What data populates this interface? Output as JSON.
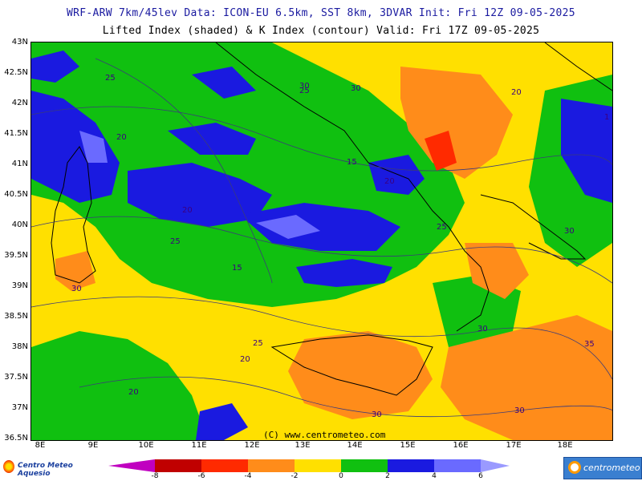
{
  "header": {
    "line1": "WRF-ARW 7km/45lev   Data: ICON-EU 6.5km, SST 8km, 3DVAR   Init: Fri 12Z 09-05-2025",
    "line2": "Lifted Index (shaded) & K Index (contour)  Valid: Fri 17Z 09-05-2025"
  },
  "axes": {
    "lat_labels": [
      "43N",
      "42.5N",
      "42N",
      "41.5N",
      "41N",
      "40.5N",
      "40N",
      "39.5N",
      "39N",
      "38.5N",
      "38N",
      "37.5N",
      "37N",
      "36.5N"
    ],
    "lon_labels": [
      "8E",
      "9E",
      "10E",
      "11E",
      "12E",
      "13E",
      "14E",
      "15E",
      "16E",
      "17E",
      "18E"
    ]
  },
  "contour_labels": [
    "25",
    "20",
    "30",
    "30",
    "25",
    "20",
    "15",
    "20",
    "20",
    "25",
    "25",
    "30",
    "15",
    "30",
    "25",
    "20",
    "20",
    "30",
    "30",
    "30",
    "35",
    "1"
  ],
  "watermark": "(C) www.centrometeo.com",
  "logos": {
    "left": "Centro Meteo Aquesio",
    "right": "centrometeo"
  },
  "colorbar": {
    "labels": [
      "-8",
      "-6",
      "-4",
      "-2",
      "0",
      "2",
      "4",
      "6"
    ],
    "colors": [
      "#c000c0",
      "#c00000",
      "#ff2a00",
      "#ff8c1a",
      "#ffe000",
      "#10c010",
      "#1a1ae0",
      "#6a6aff",
      "#9a9aff"
    ]
  }
}
